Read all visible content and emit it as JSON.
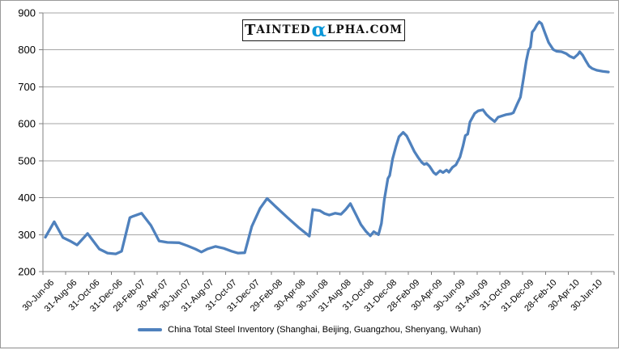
{
  "ui": {
    "logo": {
      "first_letter": "T",
      "prefix_rest": "AINTED",
      "alpha": "α",
      "suffix": "LPHA.COM",
      "alpha_color": "#0b97d8"
    },
    "legend": {
      "marker_icon": "line-series-marker"
    }
  },
  "chart_data": {
    "type": "line",
    "title": "",
    "series": [
      {
        "name": "China Total Steel Inventory (Shanghai, Beijing, Guangzhou, Shenyang, Wuhan)",
        "color": "#4F81BD",
        "points": [
          [
            0,
            293
          ],
          [
            0.75,
            335
          ],
          [
            1.5,
            292
          ],
          [
            2.1,
            283
          ],
          [
            2.7,
            272
          ],
          [
            3.6,
            303
          ],
          [
            4.6,
            261
          ],
          [
            5.3,
            250
          ],
          [
            6,
            248
          ],
          [
            6.5,
            255
          ],
          [
            7.2,
            346
          ],
          [
            7.5,
            350
          ],
          [
            8.2,
            358
          ],
          [
            9,
            325
          ],
          [
            9.7,
            283
          ],
          [
            10.4,
            279
          ],
          [
            11.4,
            278
          ],
          [
            12.1,
            270
          ],
          [
            12.8,
            261
          ],
          [
            13.3,
            253
          ],
          [
            13.8,
            261
          ],
          [
            14.5,
            268
          ],
          [
            15.2,
            263
          ],
          [
            15.9,
            255
          ],
          [
            16.4,
            250
          ],
          [
            17,
            251
          ],
          [
            17.6,
            322
          ],
          [
            18.3,
            371
          ],
          [
            18.9,
            398
          ],
          [
            19.7,
            374
          ],
          [
            20.65,
            346
          ],
          [
            21.6,
            319
          ],
          [
            22.5,
            296
          ],
          [
            22.8,
            368
          ],
          [
            23.4,
            365
          ],
          [
            23.8,
            357
          ],
          [
            24.2,
            353
          ],
          [
            24.7,
            358
          ],
          [
            25.2,
            355
          ],
          [
            25.6,
            368
          ],
          [
            26,
            384
          ],
          [
            26.5,
            353
          ],
          [
            26.9,
            327
          ],
          [
            27.35,
            308
          ],
          [
            27.7,
            297
          ],
          [
            28,
            308
          ],
          [
            28.4,
            300
          ],
          [
            28.65,
            330
          ],
          [
            28.9,
            395
          ],
          [
            29.2,
            452
          ],
          [
            29.35,
            460
          ],
          [
            29.6,
            505
          ],
          [
            29.9,
            540
          ],
          [
            30.15,
            565
          ],
          [
            30.5,
            577
          ],
          [
            30.8,
            567
          ],
          [
            31.1,
            548
          ],
          [
            31.45,
            525
          ],
          [
            31.8,
            508
          ],
          [
            32.1,
            495
          ],
          [
            32.3,
            490
          ],
          [
            32.5,
            493
          ],
          [
            32.75,
            485
          ],
          [
            33.1,
            468
          ],
          [
            33.3,
            463
          ],
          [
            33.65,
            473
          ],
          [
            33.9,
            468
          ],
          [
            34.2,
            475
          ],
          [
            34.4,
            469
          ],
          [
            34.7,
            482
          ],
          [
            35,
            489
          ],
          [
            35.35,
            510
          ],
          [
            35.6,
            540
          ],
          [
            35.8,
            568
          ],
          [
            36,
            572
          ],
          [
            36.2,
            605
          ],
          [
            36.6,
            628
          ],
          [
            36.9,
            635
          ],
          [
            37.3,
            638
          ],
          [
            37.6,
            625
          ],
          [
            37.9,
            616
          ],
          [
            38.3,
            606
          ],
          [
            38.6,
            618
          ],
          [
            39,
            622
          ],
          [
            39.3,
            625
          ],
          [
            39.7,
            627
          ],
          [
            39.9,
            630
          ],
          [
            40.2,
            652
          ],
          [
            40.5,
            672
          ],
          [
            40.75,
            720
          ],
          [
            41,
            770
          ],
          [
            41.2,
            800
          ],
          [
            41.35,
            807
          ],
          [
            41.5,
            848
          ],
          [
            41.7,
            856
          ],
          [
            41.9,
            868
          ],
          [
            42.1,
            876
          ],
          [
            42.3,
            871
          ],
          [
            42.6,
            845
          ],
          [
            42.9,
            820
          ],
          [
            43.3,
            801
          ],
          [
            43.6,
            796
          ],
          [
            44,
            795
          ],
          [
            44.4,
            790
          ],
          [
            44.7,
            783
          ],
          [
            45.05,
            778
          ],
          [
            45.4,
            788
          ],
          [
            45.55,
            795
          ],
          [
            45.8,
            786
          ],
          [
            46.1,
            769
          ],
          [
            46.35,
            756
          ],
          [
            46.6,
            750
          ],
          [
            47,
            745
          ],
          [
            47.5,
            742
          ],
          [
            48,
            740
          ]
        ]
      }
    ],
    "x_tick_labels": [
      "30-Jun-06",
      "31-Aug-06",
      "31-Oct-06",
      "31-Dec-06",
      "28-Feb-07",
      "30-Apr-07",
      "30-Jun-07",
      "31-Aug-07",
      "31-Oct-07",
      "31-Dec-07",
      "29-Feb-08",
      "30-Apr-08",
      "30-Jun-08",
      "31-Aug-08",
      "31-Oct-08",
      "31-Dec-08",
      "28-Feb-09",
      "30-Apr-09",
      "30-Jun-09",
      "31-Aug-09",
      "31-Oct-09",
      "31-Dec-09",
      "28-Feb-10",
      "30-Apr-10",
      "30-Jun-10"
    ],
    "x_axis_months_range": [
      0,
      48
    ],
    "x_label_interval_months": 2,
    "y_ticks": [
      200,
      300,
      400,
      500,
      600,
      700,
      800,
      900
    ],
    "ylim": [
      200,
      900
    ],
    "grid": "horizontal",
    "gridline_color": "#A6A6A6",
    "axis_color": "#808080",
    "text_color": "#000000",
    "legend_position": "bottom"
  }
}
